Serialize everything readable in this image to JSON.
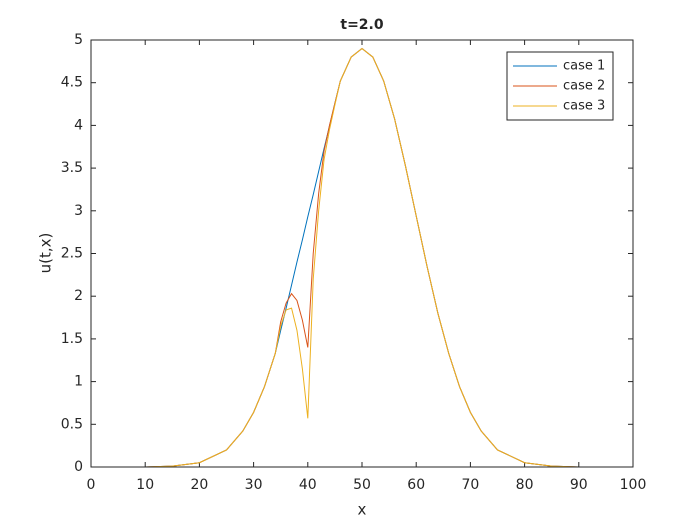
{
  "chart_data": {
    "type": "line",
    "title": "t=2.0",
    "x_label": "x",
    "y_label": "u(t,x)",
    "x": [
      0,
      5,
      10,
      15,
      20,
      25,
      28,
      30,
      32,
      34,
      35,
      36,
      37,
      38,
      39,
      40,
      41,
      42,
      43,
      44,
      45,
      46,
      48,
      50,
      52,
      54,
      56,
      58,
      60,
      62,
      64,
      66,
      68,
      70,
      72,
      75,
      80,
      85,
      90,
      95,
      100
    ],
    "series": [
      {
        "name": "case 1",
        "color": "#0072bd",
        "values": [
          0,
          0,
          0,
          0.01,
          0.05,
          0.2,
          0.42,
          0.64,
          0.94,
          1.33,
          1.6,
          1.86,
          2.13,
          2.4,
          2.66,
          2.93,
          3.19,
          3.46,
          3.73,
          3.99,
          4.26,
          4.52,
          4.8,
          4.9,
          4.8,
          4.52,
          4.08,
          3.53,
          2.94,
          2.35,
          1.8,
          1.33,
          0.94,
          0.64,
          0.42,
          0.2,
          0.05,
          0.01,
          0,
          0,
          0
        ]
      },
      {
        "name": "case 2",
        "color": "#d95319",
        "values": [
          0,
          0,
          0,
          0.01,
          0.05,
          0.2,
          0.42,
          0.64,
          0.94,
          1.33,
          1.7,
          1.92,
          2.03,
          1.95,
          1.72,
          1.4,
          2.5,
          3.2,
          3.7,
          4.0,
          4.26,
          4.52,
          4.8,
          4.9,
          4.8,
          4.52,
          4.08,
          3.53,
          2.94,
          2.35,
          1.8,
          1.33,
          0.94,
          0.64,
          0.42,
          0.2,
          0.05,
          0.01,
          0,
          0,
          0
        ]
      },
      {
        "name": "case 3",
        "color": "#edb120",
        "values": [
          0,
          0,
          0,
          0.01,
          0.05,
          0.2,
          0.42,
          0.64,
          0.94,
          1.33,
          1.65,
          1.84,
          1.86,
          1.6,
          1.15,
          0.57,
          2.2,
          3.0,
          3.6,
          3.95,
          4.24,
          4.52,
          4.8,
          4.9,
          4.8,
          4.52,
          4.08,
          3.53,
          2.94,
          2.35,
          1.8,
          1.33,
          0.94,
          0.64,
          0.42,
          0.2,
          0.05,
          0.01,
          0,
          0,
          0
        ]
      }
    ],
    "xlim": [
      0,
      100
    ],
    "xticks": [
      0,
      10,
      20,
      30,
      40,
      50,
      60,
      70,
      80,
      90,
      100
    ],
    "ylim": [
      0,
      5
    ],
    "yticks": [
      0,
      0.5,
      1,
      1.5,
      2,
      2.5,
      3,
      3.5,
      4,
      4.5,
      5
    ],
    "legend": "top-right",
    "grid": false
  }
}
